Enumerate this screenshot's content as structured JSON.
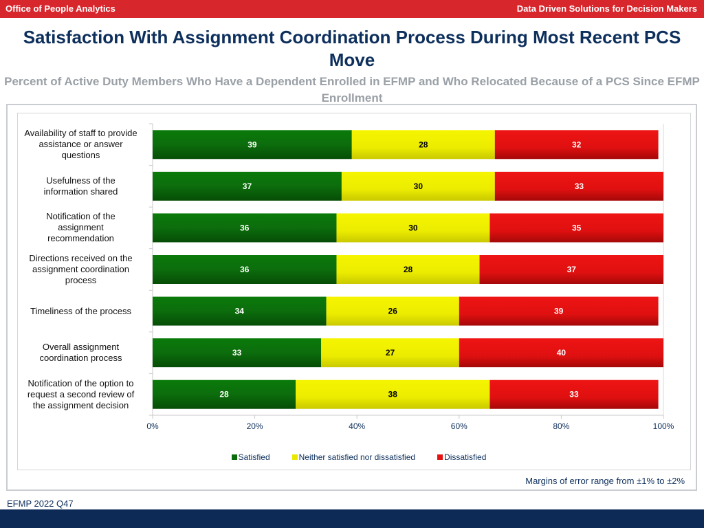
{
  "header": {
    "left": "Office of People Analytics",
    "right": "Data Driven Solutions for Decision Makers"
  },
  "title": "Satisfaction With Assignment Coordination Process During Most Recent PCS Move",
  "subtitle": "Percent of Active Duty Members Who Have a Dependent Enrolled in EFMP and Who Relocated Because of a PCS Since EFMP Enrollment",
  "footer": {
    "moe": "Margins of error range from ±1% to ±2%",
    "source": "EFMP 2022 Q47"
  },
  "colors": {
    "satisfied": "#0a6b0a",
    "neither": "#f2f200",
    "dissatisfied": "#e51212",
    "header": "#d8262d",
    "footer": "#0d2a56",
    "title": "#0d2f5c"
  },
  "chart_data": {
    "type": "bar",
    "orientation": "horizontal",
    "stacked": true,
    "percent": true,
    "categories": [
      "Availability of staff to provide assistance or answer questions",
      "Usefulness of the information shared",
      "Notification of the assignment recommendation",
      "Directions received on the assignment coordination process",
      "Timeliness of the process",
      "Overall assignment coordination process",
      "Notification of the option to request a second review of the assignment decision"
    ],
    "category_lines": [
      [
        "Availability of staff to provide",
        "assistance or answer",
        "questions"
      ],
      [
        "Usefulness of the",
        "information shared"
      ],
      [
        "Notification of the",
        "assignment",
        "recommendation"
      ],
      [
        "Directions received on the",
        "assignment coordination",
        "process"
      ],
      [
        "Timeliness of the process"
      ],
      [
        "Overall assignment",
        "coordination process"
      ],
      [
        "Notification of the option to",
        "request a second review of",
        "the assignment decision"
      ]
    ],
    "series": [
      {
        "name": "Satisfied",
        "values": [
          39,
          37,
          36,
          36,
          34,
          33,
          28
        ]
      },
      {
        "name": "Neither satisfied nor dissatisfied",
        "values": [
          28,
          30,
          30,
          28,
          26,
          27,
          38
        ]
      },
      {
        "name": "Dissatisfied",
        "values": [
          32,
          33,
          35,
          37,
          39,
          40,
          33
        ]
      }
    ],
    "xlim": [
      0,
      100
    ],
    "xticks": [
      "0%",
      "20%",
      "40%",
      "60%",
      "80%",
      "100%"
    ],
    "legend_position": "bottom"
  }
}
